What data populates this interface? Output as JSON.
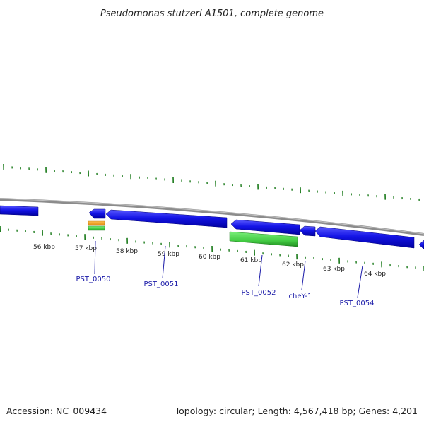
{
  "title": "Pseudomonas stutzeri A1501, complete genome",
  "footer": {
    "accession": "Accession: NC_009434",
    "summary": "Topology: circular; Length: 4,567,418 bp; Genes: 4,201"
  },
  "scale_labels": [
    "56 kbp",
    "57 kbp",
    "58 kbp",
    "59 kbp",
    "60 kbp",
    "61 kbp",
    "62 kbp",
    "63 kbp",
    "64 kbp"
  ],
  "gene_labels": [
    "PST_0050",
    "PST_0051",
    "PST_0052",
    "cheY-1",
    "PST_0054"
  ],
  "colors": {
    "backbone": "#8c8c8c",
    "gene_blue": "#1414e6",
    "rna_green": "#44cc44",
    "orange": "#f0a020",
    "tick_green": "#1a7a1a",
    "label_blue": "#1a1aa8"
  }
}
